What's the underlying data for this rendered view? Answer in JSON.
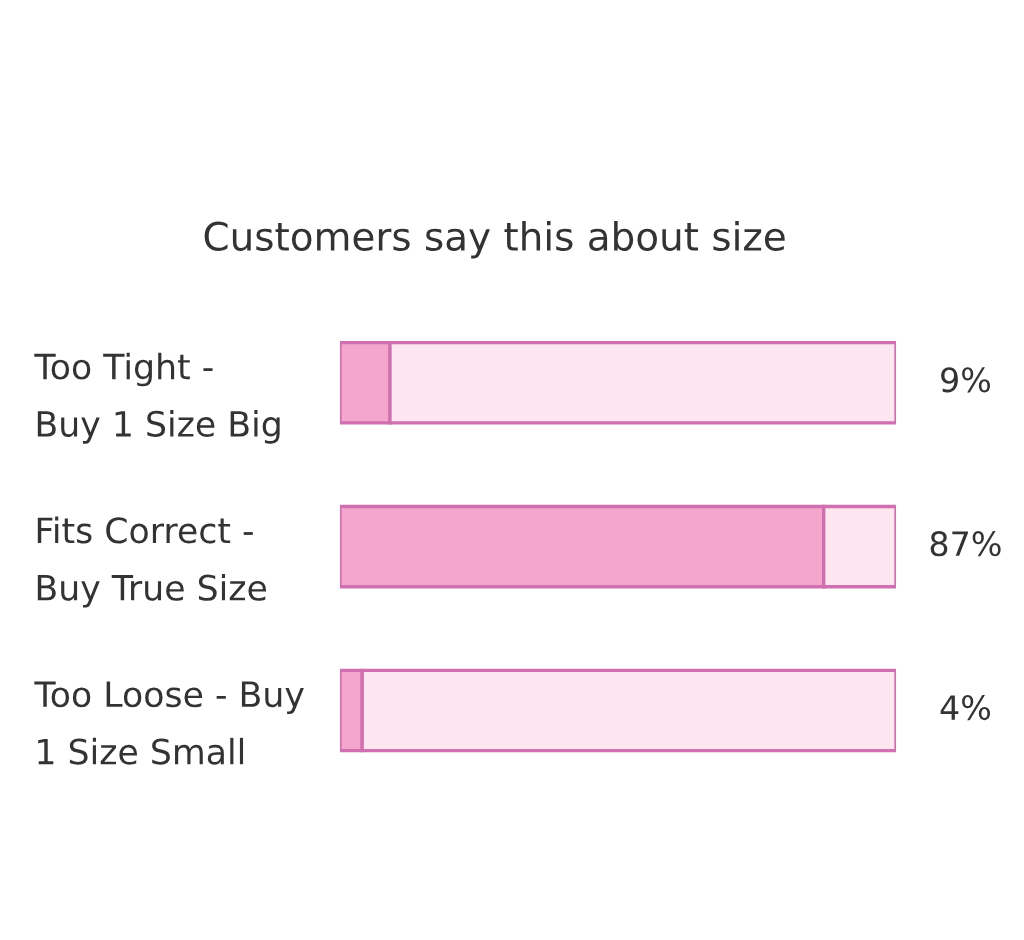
{
  "chart_data": {
    "type": "bar",
    "orientation": "horizontal",
    "stacked": true,
    "title": "Customers say this about size",
    "categories": [
      "Too Tight -\nBuy 1 Size Big",
      "Fits Correct -\nBuy True Size",
      "Too Loose - Buy\n1 Size Small"
    ],
    "series": [
      {
        "color": "#f4a6cc",
        "values": [
          9,
          87,
          4
        ],
        "value_labels": [
          "9%",
          "87%",
          "4%"
        ]
      },
      {
        "color": "#fde6f0",
        "values": [
          91,
          13,
          96
        ]
      }
    ],
    "xlim": [
      0,
      100
    ],
    "tick_labels": "y",
    "grid": false,
    "legend": false
  }
}
